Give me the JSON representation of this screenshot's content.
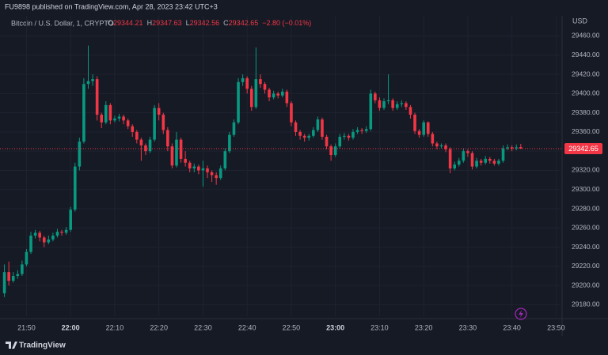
{
  "header": "FU9898 published on TradingView.com, Apr 28, 2023 23:42 UTC+3",
  "footer": "TradingView",
  "chart_data": {
    "type": "candlestick",
    "title": "Bitcoin / U.S. Dollar, 1, CRYPTO",
    "ohlc_labels": [
      "O",
      "H",
      "L",
      "C"
    ],
    "change": "−2.80 (−0.01%)",
    "currency": "USD",
    "up_color": "#089981",
    "down_color": "#f23645",
    "x": [
      "21:45",
      "21:46",
      "21:47",
      "21:48",
      "21:49",
      "21:50",
      "21:51",
      "21:52",
      "21:53",
      "21:54",
      "21:55",
      "21:56",
      "21:57",
      "21:58",
      "21:59",
      "22:00",
      "22:01",
      "22:02",
      "22:03",
      "22:04",
      "22:05",
      "22:06",
      "22:07",
      "22:08",
      "22:09",
      "22:10",
      "22:11",
      "22:12",
      "22:13",
      "22:14",
      "22:15",
      "22:16",
      "22:17",
      "22:18",
      "22:19",
      "22:20",
      "22:21",
      "22:22",
      "22:23",
      "22:24",
      "22:25",
      "22:26",
      "22:27",
      "22:28",
      "22:29",
      "22:30",
      "22:31",
      "22:32",
      "22:33",
      "22:34",
      "22:35",
      "22:36",
      "22:37",
      "22:38",
      "22:39",
      "22:40",
      "22:41",
      "22:42",
      "22:43",
      "22:44",
      "22:45",
      "22:46",
      "22:47",
      "22:48",
      "22:49",
      "22:50",
      "22:51",
      "22:52",
      "22:53",
      "22:54",
      "22:55",
      "22:56",
      "22:57",
      "22:58",
      "22:59",
      "23:00",
      "23:01",
      "23:02",
      "23:03",
      "23:04",
      "23:05",
      "23:06",
      "23:07",
      "23:08",
      "23:09",
      "23:10",
      "23:11",
      "23:12",
      "23:13",
      "23:14",
      "23:15",
      "23:16",
      "23:17",
      "23:18",
      "23:19",
      "23:20",
      "23:21",
      "23:22",
      "23:23",
      "23:24",
      "23:25",
      "23:26",
      "23:27",
      "23:28",
      "23:29",
      "23:30",
      "23:31",
      "23:32",
      "23:33",
      "23:34",
      "23:35",
      "23:36",
      "23:37",
      "23:38",
      "23:39",
      "23:40",
      "23:41",
      "23:42"
    ],
    "open": [
      29192,
      29214,
      29205,
      29210,
      29212,
      29222,
      29235,
      29252,
      29255,
      29250,
      29245,
      29248,
      29252,
      29256,
      29255,
      29258,
      29279,
      29324,
      29350,
      29410,
      29413,
      29415,
      29378,
      29370,
      29388,
      29372,
      29374,
      29376,
      29372,
      29366,
      29360,
      29352,
      29346,
      29340,
      29352,
      29385,
      29378,
      29362,
      29345,
      29325,
      29352,
      29332,
      29328,
      29322,
      29324,
      29320,
      29322,
      29318,
      29315,
      29312,
      29322,
      29340,
      29357,
      29370,
      29412,
      29416,
      29405,
      29386,
      29415,
      29410,
      29404,
      29396,
      29400,
      29398,
      29402,
      29390,
      29370,
      29360,
      29356,
      29354,
      29356,
      29362,
      29373,
      29355,
      29345,
      29336,
      29345,
      29355,
      29356,
      29354,
      29360,
      29362,
      29361,
      29363,
      29400,
      29393,
      29385,
      29392,
      29393,
      29385,
      29389,
      29390,
      29386,
      29378,
      29361,
      29357,
      29370,
      29358,
      29348,
      29345,
      29346,
      29342,
      29322,
      29326,
      29330,
      29340,
      29338,
      29324,
      29330,
      29328,
      29332,
      29330,
      29327,
      29330,
      29343,
      29344,
      29343,
      29344.21
    ],
    "high": [
      29222,
      29225,
      29214,
      29216,
      29226,
      29238,
      29256,
      29258,
      29257,
      29252,
      29252,
      29255,
      29259,
      29258,
      29261,
      29282,
      29328,
      29354,
      29416,
      29450,
      29420,
      29418,
      29380,
      29392,
      29390,
      29377,
      29379,
      29378,
      29374,
      29368,
      29362,
      29354,
      29348,
      29355,
      29388,
      29390,
      29380,
      29365,
      29348,
      29360,
      29354,
      29340,
      29330,
      29327,
      29326,
      29330,
      29325,
      29320,
      29318,
      29325,
      29343,
      29360,
      29373,
      29416,
      29420,
      29418,
      29408,
      29448,
      29420,
      29412,
      29406,
      29403,
      29402,
      29405,
      29404,
      29392,
      29372,
      29362,
      29358,
      29358,
      29365,
      29376,
      29375,
      29357,
      29347,
      29348,
      29358,
      29359,
      29358,
      29363,
      29365,
      29364,
      29366,
      29404,
      29402,
      29396,
      29395,
      29420,
      29395,
      29392,
      29393,
      29392,
      29388,
      29380,
      29363,
      29372,
      29371,
      29360,
      29350,
      29348,
      29348,
      29344,
      29329,
      29333,
      29343,
      29342,
      29340,
      29333,
      29332,
      29335,
      29334,
      29332,
      29332,
      29346,
      29347,
      29346,
      29347,
      29347.63
    ],
    "low": [
      29188,
      29200,
      29203,
      29207,
      29210,
      29220,
      29233,
      29249,
      29246,
      29240,
      29243,
      29246,
      29250,
      29252,
      29253,
      29256,
      29277,
      29320,
      29348,
      29405,
      29408,
      29372,
      29364,
      29368,
      29368,
      29370,
      29371,
      29368,
      29363,
      29355,
      29348,
      29330,
      29336,
      29338,
      29350,
      29372,
      29358,
      29340,
      29322,
      29323,
      29328,
      29324,
      29318,
      29318,
      29316,
      29303,
      29312,
      29308,
      29305,
      29310,
      29320,
      29338,
      29355,
      29368,
      29408,
      29400,
      29382,
      29384,
      29406,
      29400,
      29392,
      29394,
      29395,
      29396,
      29386,
      29366,
      29356,
      29352,
      29350,
      29351,
      29354,
      29360,
      29352,
      29342,
      29330,
      29334,
      29343,
      29352,
      29351,
      29352,
      29358,
      29358,
      29359,
      29361,
      29390,
      29382,
      29383,
      29389,
      29382,
      29383,
      29386,
      29383,
      29374,
      29358,
      29354,
      29355,
      29355,
      29345,
      29342,
      29343,
      29339,
      29317,
      29320,
      29324,
      29328,
      29334,
      29321,
      29322,
      29325,
      29326,
      29327,
      29325,
      29325,
      29328,
      29341,
      29340,
      29341,
      29342.56
    ],
    "close": [
      29214,
      29205,
      29210,
      29212,
      29222,
      29235,
      29252,
      29255,
      29250,
      29245,
      29248,
      29252,
      29256,
      29255,
      29258,
      29279,
      29324,
      29350,
      29410,
      29413,
      29415,
      29378,
      29370,
      29388,
      29372,
      29374,
      29376,
      29372,
      29366,
      29360,
      29352,
      29346,
      29340,
      29352,
      29385,
      29378,
      29362,
      29345,
      29325,
      29352,
      29332,
      29328,
      29322,
      29324,
      29320,
      29322,
      29318,
      29315,
      29312,
      29322,
      29340,
      29357,
      29370,
      29412,
      29416,
      29405,
      29386,
      29415,
      29410,
      29404,
      29396,
      29400,
      29398,
      29402,
      29390,
      29370,
      29360,
      29356,
      29354,
      29356,
      29362,
      29373,
      29355,
      29345,
      29336,
      29345,
      29355,
      29356,
      29354,
      29360,
      29362,
      29361,
      29363,
      29400,
      29393,
      29385,
      29392,
      29393,
      29385,
      29389,
      29390,
      29386,
      29378,
      29361,
      29357,
      29370,
      29358,
      29348,
      29345,
      29346,
      29342,
      29322,
      29326,
      29330,
      29340,
      29338,
      29324,
      29330,
      29328,
      29332,
      29330,
      29327,
      29330,
      29343,
      29344,
      29343,
      29344,
      29342.65
    ],
    "xlim": [
      "21:44",
      "23:51"
    ],
    "xticks": [
      "21:50",
      "22:00",
      "22:10",
      "22:20",
      "22:30",
      "22:40",
      "22:50",
      "23:00",
      "23:10",
      "23:20",
      "23:30",
      "23:40",
      "23:50"
    ],
    "ylim": [
      29168,
      29481
    ],
    "yticks": [
      {
        "value": 29180,
        "label": "29180.00"
      },
      {
        "value": 29200,
        "label": "29200.00"
      },
      {
        "value": 29220,
        "label": "29220.00"
      },
      {
        "value": 29240,
        "label": "29240.00"
      },
      {
        "value": 29260,
        "label": "29260.00"
      },
      {
        "value": 29280,
        "label": "29280.00"
      },
      {
        "value": 29300,
        "label": "29300.00"
      },
      {
        "value": 29320,
        "label": "29320.00"
      },
      {
        "value": 29340,
        "label": "29340.00"
      },
      {
        "value": 29360,
        "label": "29360.00"
      },
      {
        "value": 29380,
        "label": "29380.00"
      },
      {
        "value": 29400,
        "label": "29400.00"
      },
      {
        "value": 29420,
        "label": "29420.00"
      },
      {
        "value": 29440,
        "label": "29440.00"
      },
      {
        "value": 29460,
        "label": "29460.00"
      }
    ],
    "grid": true
  }
}
